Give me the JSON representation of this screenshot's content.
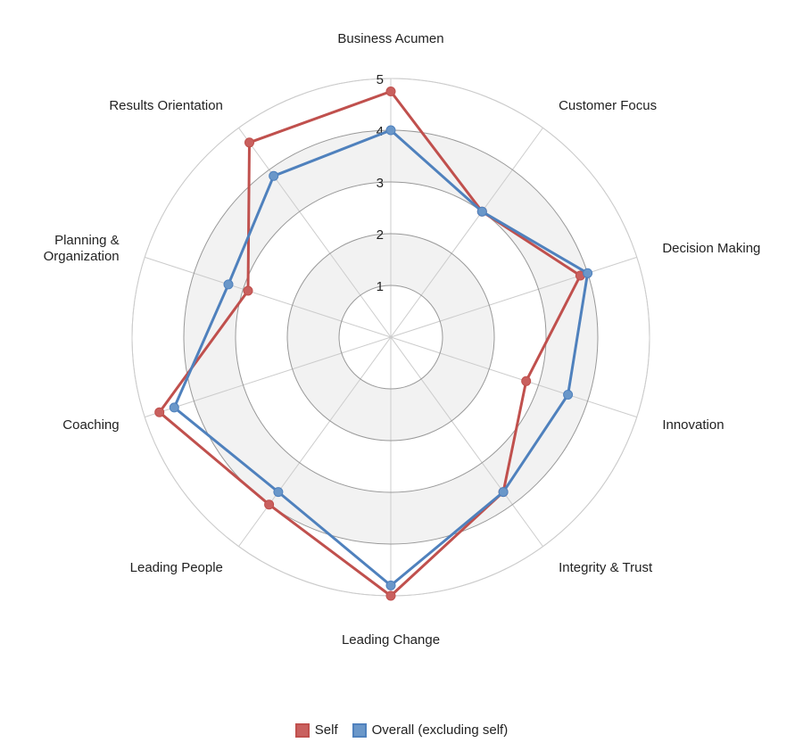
{
  "chart_data": {
    "type": "radar",
    "categories": [
      "Business Acumen",
      "Customer Focus",
      "Decision Making",
      "Innovation",
      "Integrity & Trust",
      "Leading Change",
      "Leading People",
      "Coaching",
      "Planning &\nOrganization",
      "Results Orientation"
    ],
    "ticks": [
      "1",
      "2",
      "3",
      "4",
      "5"
    ],
    "rlim": [
      0,
      5
    ],
    "series": [
      {
        "name": "Self",
        "values": [
          4.75,
          3.0,
          3.85,
          2.75,
          3.7,
          5.0,
          4.0,
          4.7,
          2.9,
          4.65
        ],
        "color": "#c0504d",
        "fill": "#c9605e"
      },
      {
        "name": "Overall (excluding self)",
        "values": [
          4.0,
          3.0,
          4.0,
          3.6,
          3.7,
          4.8,
          3.7,
          4.4,
          3.3,
          3.85
        ],
        "color": "#4f81bd",
        "fill": "#6a97c9"
      }
    ],
    "legend_position": "bottom"
  }
}
